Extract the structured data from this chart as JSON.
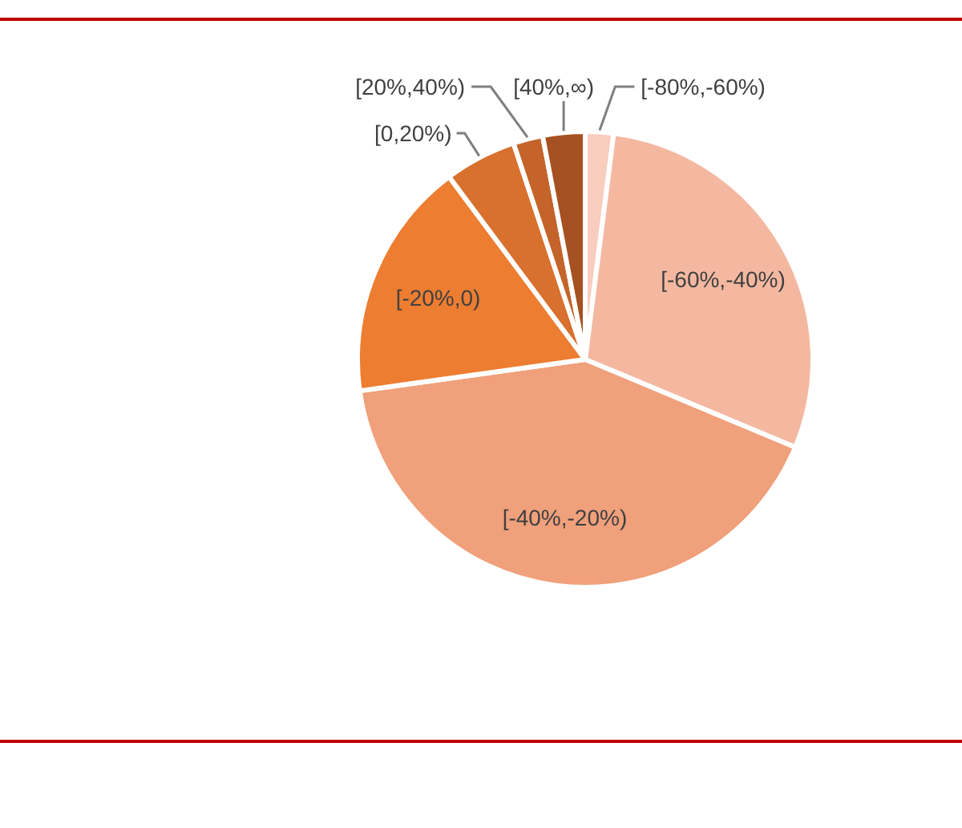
{
  "chart_data": {
    "type": "pie",
    "categories": [
      "[-80%,-60%)",
      "[-60%,-40%)",
      "[-40%,-20%)",
      "[-20%,0)",
      "[0,20%)",
      "[20%,40%)",
      "[40%,∞)"
    ],
    "values": [
      2,
      29.3,
      41.5,
      17,
      5.1,
      2.1,
      3
    ],
    "colors": [
      "#f8cdbd",
      "#f4b8a0",
      "#f0a07b",
      "#ed7d31",
      "#d8702e",
      "#c4632a",
      "#a65121"
    ]
  }
}
